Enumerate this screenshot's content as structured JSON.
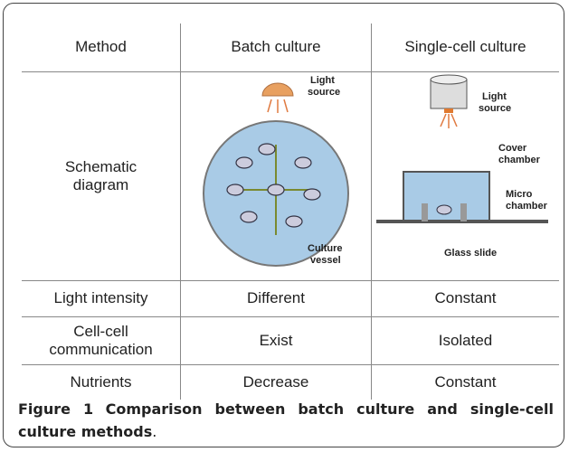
{
  "table": {
    "header": [
      "Method",
      "Batch culture",
      "Single-cell culture"
    ],
    "rows": [
      [
        "Schematic diagram"
      ],
      [
        "Light intensity",
        "Different",
        "Constant"
      ],
      [
        "Cell-cell communication",
        "Exist",
        "Isolated"
      ],
      [
        "Nutrients",
        "Decrease",
        "Constant"
      ]
    ]
  },
  "batch_diagram": {
    "light_source": [
      "Light",
      "source"
    ],
    "vessel": [
      "Culture",
      "vessel"
    ]
  },
  "single_diagram": {
    "light_source": [
      "Light",
      "source"
    ],
    "cover": [
      "Cover",
      "chamber"
    ],
    "micro": [
      "Micro",
      "chamber"
    ],
    "slide": "Glass slide"
  },
  "caption": {
    "label": "Figure 1",
    "text": "Comparison between batch culture and single-cell culture methods",
    "end": "."
  }
}
